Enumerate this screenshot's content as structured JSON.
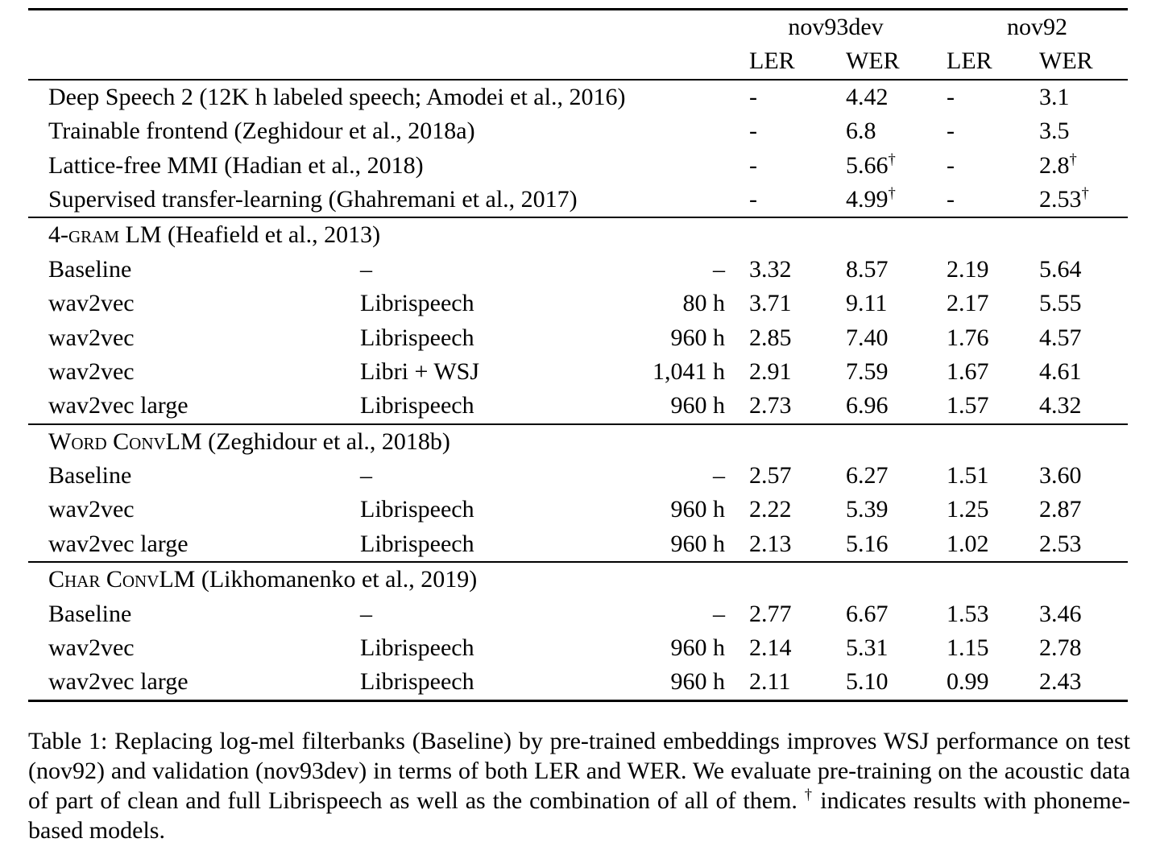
{
  "page": {
    "background": "#ffffff",
    "text_color": "#000000"
  },
  "table": {
    "groups": [
      "nov93dev",
      "nov92"
    ],
    "sub_headers": [
      "LER",
      "WER",
      "LER",
      "WER"
    ],
    "sections": [
      {
        "title_sc": null,
        "title_rest": null,
        "rows": [
          {
            "model": "Deep Speech 2 (12K h labeled speech; Amodei et al., 2016)",
            "data": null,
            "hours": null,
            "values": [
              {
                "t": "-"
              },
              {
                "t": "4.42"
              },
              {
                "t": "-"
              },
              {
                "t": "3.1"
              }
            ]
          },
          {
            "model": "Trainable frontend (Zeghidour et al., 2018a)",
            "data": null,
            "hours": null,
            "values": [
              {
                "t": "-"
              },
              {
                "t": "6.8"
              },
              {
                "t": "-"
              },
              {
                "t": "3.5"
              }
            ]
          },
          {
            "model": "Lattice-free MMI (Hadian et al., 2018)",
            "data": null,
            "hours": null,
            "values": [
              {
                "t": "-"
              },
              {
                "t": "5.66",
                "sup": "†"
              },
              {
                "t": "-"
              },
              {
                "t": "2.8",
                "sup": "†"
              }
            ]
          },
          {
            "model": "Supervised transfer-learning (Ghahremani et al., 2017)",
            "data": null,
            "hours": null,
            "values": [
              {
                "t": "-"
              },
              {
                "t": "4.99",
                "sup": "†"
              },
              {
                "t": "-"
              },
              {
                "t": "2.53",
                "sup": "†"
              }
            ]
          }
        ]
      },
      {
        "title_sc": "4-gram LM",
        "title_rest": " (Heafield et al., 2013)",
        "rows": [
          {
            "model": "Baseline",
            "data": "–",
            "hours": "–",
            "values": [
              {
                "t": "3.32"
              },
              {
                "t": "8.57"
              },
              {
                "t": "2.19"
              },
              {
                "t": "5.64"
              }
            ]
          },
          {
            "model": "wav2vec",
            "data": "Librispeech",
            "hours": "80 h",
            "values": [
              {
                "t": "3.71"
              },
              {
                "t": "9.11"
              },
              {
                "t": "2.17"
              },
              {
                "t": "5.55"
              }
            ]
          },
          {
            "model": "wav2vec",
            "data": "Librispeech",
            "hours": "960 h",
            "values": [
              {
                "t": "2.85"
              },
              {
                "t": "7.40"
              },
              {
                "t": "1.76"
              },
              {
                "t": "4.57"
              }
            ]
          },
          {
            "model": "wav2vec",
            "data": "Libri + WSJ",
            "hours": "1,041 h",
            "values": [
              {
                "t": "2.91"
              },
              {
                "t": "7.59"
              },
              {
                "t": "1.67"
              },
              {
                "t": "4.61"
              }
            ]
          },
          {
            "model": "wav2vec large",
            "data": "Librispeech",
            "hours": "960 h",
            "values": [
              {
                "t": "2.73"
              },
              {
                "t": "6.96"
              },
              {
                "t": "1.57"
              },
              {
                "t": "4.32"
              }
            ]
          }
        ]
      },
      {
        "title_sc": "Word ConvLM",
        "title_rest": " (Zeghidour et al., 2018b)",
        "rows": [
          {
            "model": "Baseline",
            "data": "–",
            "hours": "–",
            "values": [
              {
                "t": "2.57"
              },
              {
                "t": "6.27"
              },
              {
                "t": "1.51"
              },
              {
                "t": "3.60"
              }
            ]
          },
          {
            "model": "wav2vec",
            "data": "Librispeech",
            "hours": "960 h",
            "values": [
              {
                "t": "2.22"
              },
              {
                "t": "5.39"
              },
              {
                "t": "1.25"
              },
              {
                "t": "2.87"
              }
            ]
          },
          {
            "model": "wav2vec large",
            "data": "Librispeech",
            "hours": "960 h",
            "values": [
              {
                "t": "2.13"
              },
              {
                "t": "5.16"
              },
              {
                "t": "1.02"
              },
              {
                "t": "2.53"
              }
            ]
          }
        ]
      },
      {
        "title_sc": "Char ConvLM",
        "title_rest": " (Likhomanenko et al., 2019)",
        "rows": [
          {
            "model": "Baseline",
            "data": "–",
            "hours": "–",
            "values": [
              {
                "t": "2.77"
              },
              {
                "t": "6.67"
              },
              {
                "t": "1.53"
              },
              {
                "t": "3.46"
              }
            ]
          },
          {
            "model": "wav2vec",
            "data": "Librispeech",
            "hours": "960 h",
            "values": [
              {
                "t": "2.14"
              },
              {
                "t": "5.31"
              },
              {
                "t": "1.15"
              },
              {
                "t": "2.78"
              }
            ]
          },
          {
            "model": "wav2vec large",
            "data": "Librispeech",
            "hours": "960 h",
            "values": [
              {
                "t": "2.11"
              },
              {
                "t": "5.10"
              },
              {
                "t": "0.99"
              },
              {
                "t": "2.43"
              }
            ]
          }
        ]
      }
    ]
  },
  "caption": {
    "part1": "Table 1: Replacing log-mel filterbanks (Baseline) by pre-trained embeddings improves WSJ performance on test (nov92) and validation (nov93dev) in terms of both LER and WER. We evaluate pre-training on the acoustic data of part of clean and full Librispeech as well as the combination of all of them. ",
    "dagger": "†",
    "part2": " indicates results with phoneme-based models."
  }
}
